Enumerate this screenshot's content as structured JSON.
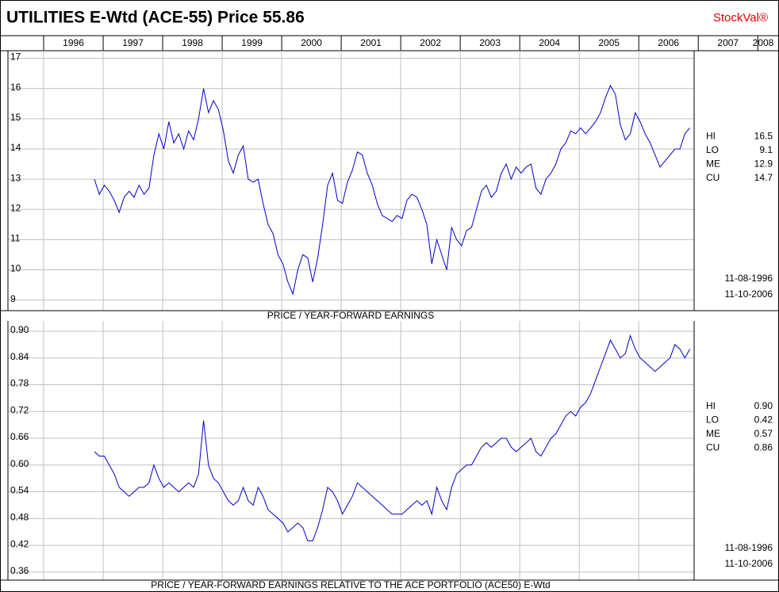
{
  "header": {
    "title": "UTILITIES E-Wtd (ACE-55)  Price 55.86",
    "brand": "StockVal®"
  },
  "xticks": [
    1996,
    1997,
    1998,
    1999,
    2000,
    2001,
    2002,
    2003,
    2004,
    2005,
    2006,
    2007,
    2008
  ],
  "xlim": [
    1995.4,
    2006.93
  ],
  "chart_data": [
    {
      "type": "line",
      "xlabel": "PRICE / YEAR-FORWARD EARNINGS",
      "color": "#0000cc",
      "grid": true,
      "ylim": [
        8.65,
        17.25
      ],
      "yticks": [
        9,
        10,
        11,
        12,
        13,
        14,
        15,
        16,
        17
      ],
      "start_date": "11-08-1996",
      "end_date": "11-10-2006",
      "stats": [
        [
          "HI",
          "16.5"
        ],
        [
          "LO",
          "9.1"
        ],
        [
          "ME",
          "12.9"
        ],
        [
          "CU",
          "14.7"
        ]
      ],
      "series": [
        {
          "name": "P/E",
          "values": [
            13.0,
            12.5,
            12.8,
            12.6,
            12.3,
            11.9,
            12.4,
            12.6,
            12.4,
            12.8,
            12.5,
            12.7,
            13.8,
            14.5,
            14.0,
            14.9,
            14.2,
            14.5,
            14.0,
            14.6,
            14.3,
            15.0,
            16.0,
            15.2,
            15.6,
            15.3,
            14.6,
            13.6,
            13.2,
            13.8,
            14.1,
            13.0,
            12.9,
            13.0,
            12.2,
            11.5,
            11.2,
            10.5,
            10.2,
            9.6,
            9.2,
            10.0,
            10.5,
            10.4,
            9.6,
            10.4,
            11.5,
            12.8,
            13.2,
            12.3,
            12.2,
            12.9,
            13.3,
            13.9,
            13.8,
            13.2,
            12.8,
            12.2,
            11.8,
            11.7,
            11.6,
            11.8,
            11.7,
            12.3,
            12.5,
            12.4,
            12.0,
            11.5,
            10.2,
            11.0,
            10.5,
            10.0,
            11.4,
            11.0,
            10.8,
            11.3,
            11.4,
            12.0,
            12.6,
            12.8,
            12.4,
            12.6,
            13.2,
            13.5,
            13.0,
            13.4,
            13.2,
            13.4,
            13.5,
            12.7,
            12.5,
            13.0,
            13.2,
            13.5,
            14.0,
            14.2,
            14.6,
            14.5,
            14.7,
            14.5,
            14.7,
            14.9,
            15.2,
            15.7,
            16.1,
            15.8,
            14.8,
            14.3,
            14.5,
            15.2,
            14.9,
            14.5,
            14.2,
            13.8,
            13.4,
            13.6,
            13.8,
            14.0,
            14.0,
            14.5,
            14.7
          ]
        }
      ]
    },
    {
      "type": "line",
      "xlabel": "PRICE / YEAR-FORWARD EARNINGS RELATIVE TO THE ACE PORTFOLIO (ACE50) E-Wtd",
      "color": "#0000cc",
      "grid": true,
      "ylim": [
        0.342,
        0.923
      ],
      "yticks": [
        {
          "value": 0.36,
          "label": "0.36"
        },
        {
          "value": 0.42,
          "label": "0.42"
        },
        {
          "value": 0.48,
          "label": "0.48"
        },
        {
          "value": 0.54,
          "label": "0.54"
        },
        {
          "value": 0.6,
          "label": "0.60"
        },
        {
          "value": 0.66,
          "label": "0.66"
        },
        {
          "value": 0.72,
          "label": "0.72"
        },
        {
          "value": 0.78,
          "label": "0.78"
        },
        {
          "value": 0.84,
          "label": "0.84"
        },
        {
          "value": 0.9,
          "label": "0.90"
        }
      ],
      "start_date": "11-08-1996",
      "end_date": "11-10-2006",
      "stats": [
        [
          "HI",
          "0.90"
        ],
        [
          "LO",
          "0.42"
        ],
        [
          "ME",
          "0.57"
        ],
        [
          "CU",
          "0.86"
        ]
      ],
      "series": [
        {
          "name": "Relative P/E",
          "values": [
            0.63,
            0.62,
            0.62,
            0.6,
            0.58,
            0.55,
            0.54,
            0.53,
            0.54,
            0.55,
            0.55,
            0.56,
            0.6,
            0.57,
            0.55,
            0.56,
            0.55,
            0.54,
            0.55,
            0.56,
            0.55,
            0.58,
            0.7,
            0.6,
            0.57,
            0.56,
            0.54,
            0.52,
            0.51,
            0.52,
            0.55,
            0.52,
            0.51,
            0.55,
            0.53,
            0.5,
            0.49,
            0.48,
            0.47,
            0.45,
            0.46,
            0.47,
            0.46,
            0.43,
            0.43,
            0.46,
            0.5,
            0.55,
            0.54,
            0.52,
            0.49,
            0.51,
            0.53,
            0.56,
            0.55,
            0.54,
            0.53,
            0.52,
            0.51,
            0.5,
            0.49,
            0.49,
            0.49,
            0.5,
            0.51,
            0.52,
            0.51,
            0.52,
            0.49,
            0.55,
            0.52,
            0.5,
            0.55,
            0.58,
            0.59,
            0.6,
            0.6,
            0.62,
            0.64,
            0.65,
            0.64,
            0.65,
            0.66,
            0.66,
            0.64,
            0.63,
            0.64,
            0.65,
            0.66,
            0.63,
            0.62,
            0.64,
            0.66,
            0.67,
            0.69,
            0.71,
            0.72,
            0.71,
            0.73,
            0.74,
            0.76,
            0.79,
            0.82,
            0.85,
            0.88,
            0.86,
            0.84,
            0.85,
            0.89,
            0.86,
            0.84,
            0.83,
            0.82,
            0.81,
            0.82,
            0.83,
            0.84,
            0.87,
            0.86,
            0.84,
            0.86
          ]
        }
      ]
    }
  ]
}
